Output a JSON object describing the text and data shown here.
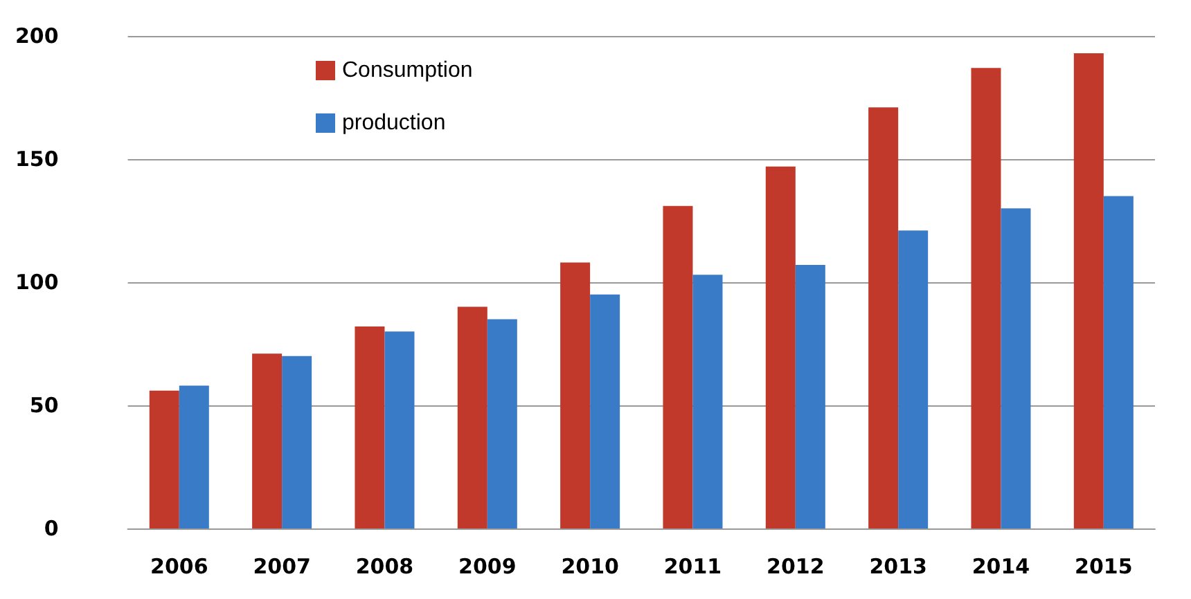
{
  "chart_data": {
    "type": "bar",
    "categories": [
      "2006",
      "2007",
      "2008",
      "2009",
      "2010",
      "2011",
      "2012",
      "2013",
      "2014",
      "2015"
    ],
    "series": [
      {
        "name": "Consumption",
        "color": "#c0392b",
        "values": [
          56,
          71,
          82,
          90,
          108,
          131,
          147,
          171,
          187,
          193
        ]
      },
      {
        "name": "production",
        "color": "#3a7bc8",
        "values": [
          58,
          70,
          80,
          85,
          95,
          103,
          107,
          121,
          130,
          135
        ]
      }
    ],
    "ylim": [
      0,
      200
    ],
    "yticks": [
      0,
      50,
      100,
      150,
      200
    ],
    "grid": "y",
    "legend": "top left"
  }
}
